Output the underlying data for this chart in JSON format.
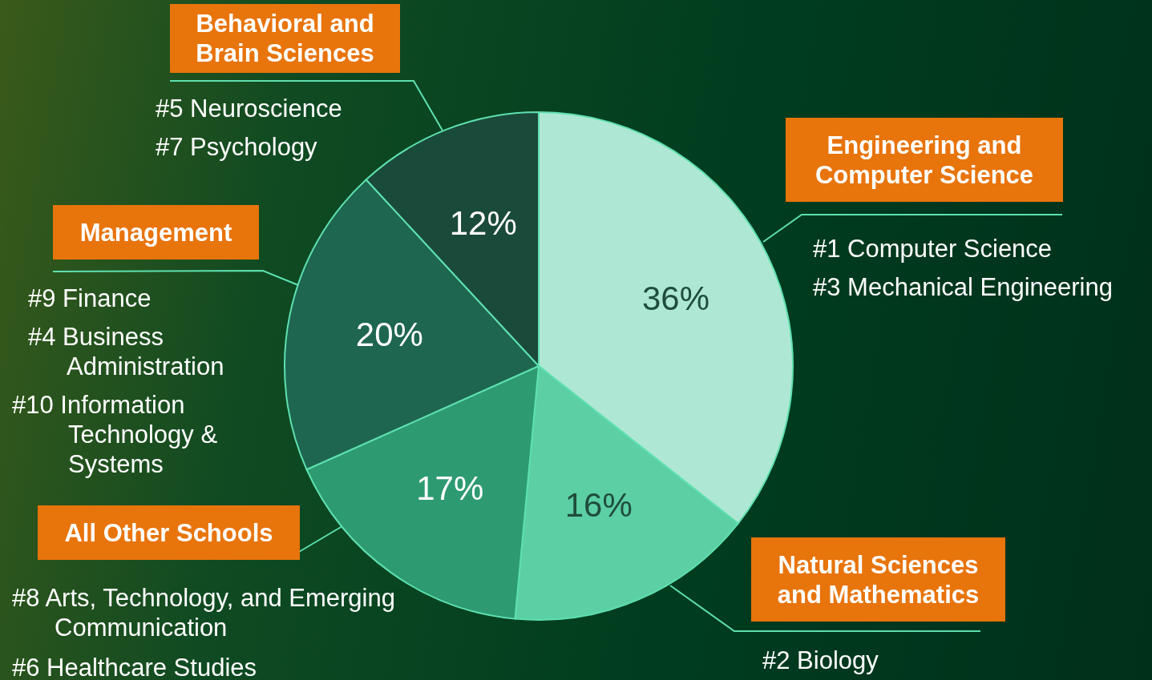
{
  "chart_data": {
    "type": "pie",
    "categories": [
      "Engineering and Computer Science",
      "Natural Sciences and Mathematics",
      "All Other Schools",
      "Management",
      "Behavioral and Brain Sciences"
    ],
    "values": [
      36,
      16,
      17,
      20,
      12
    ],
    "colors": [
      "#aee8d4",
      "#5ccfa5",
      "#2e9a72",
      "#1e6650",
      "#1a4a3a"
    ],
    "value_labels": [
      "36%",
      "16%",
      "17%",
      "20%",
      "12%"
    ],
    "annotations": [
      "#1 Computer Science",
      "#3 Mechanical Engineering",
      "#2 Biology",
      "#8 Arts, Technology, and Emerging Communication",
      "#6 Healthcare Studies",
      "#9 Finance",
      "#4 Business Administration",
      "#10 Information Technology & Systems",
      "#5 Neuroscience",
      "#7 Psychology"
    ]
  }
}
